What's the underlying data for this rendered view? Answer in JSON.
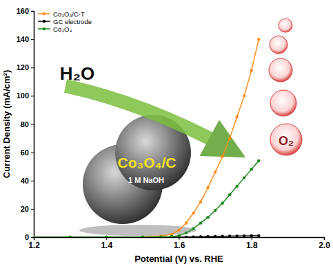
{
  "chart_data": {
    "type": "line",
    "x_label": "Potential (V) vs. RHE",
    "y_label": "Current Density (mA/cm²)",
    "x": [
      1.2,
      1.3,
      1.4,
      1.5,
      1.55,
      1.58,
      1.6,
      1.62,
      1.64,
      1.66,
      1.68,
      1.7,
      1.72,
      1.74,
      1.76,
      1.78,
      1.8,
      1.82
    ],
    "series": [
      {
        "name": "Co₃O₄/C-T",
        "color": "#ff8c1a",
        "marker": "circle",
        "line_style": "solid",
        "values": [
          0,
          0,
          0,
          0.2,
          0.8,
          2,
          5,
          10,
          17,
          25,
          35,
          46,
          57,
          70,
          85,
          100,
          118,
          140
        ]
      },
      {
        "name": "GC electrode",
        "color": "#000000",
        "marker": "circle",
        "line_style": "solid",
        "values": [
          0,
          0,
          0,
          0,
          0,
          0,
          0,
          0,
          0.2,
          0.3,
          0.4,
          0.5,
          0.6,
          0.7,
          0.8,
          0.9,
          1,
          1
        ]
      },
      {
        "name": "Co₃O₄",
        "color": "#1a8a1a",
        "marker": "circle",
        "line_style": "solid",
        "values": [
          0,
          0,
          0,
          0,
          0.2,
          0.5,
          1,
          3,
          6,
          10,
          14,
          19,
          24,
          30,
          36,
          42,
          48,
          54
        ]
      }
    ],
    "xlim": [
      1.2,
      2.0
    ],
    "xticks": [
      1.2,
      1.4,
      1.6,
      1.8,
      {
        "value": 2.0,
        "label": "2.0"
      }
    ],
    "ylim": [
      0,
      160
    ],
    "yticks": [
      0,
      20,
      40,
      60,
      80,
      100,
      120,
      140,
      160
    ],
    "grid": false,
    "legend": "upper left",
    "annotations": [
      "H₂O",
      "Co₃O₄/C",
      "1 M NaOH",
      "O₂"
    ]
  }
}
